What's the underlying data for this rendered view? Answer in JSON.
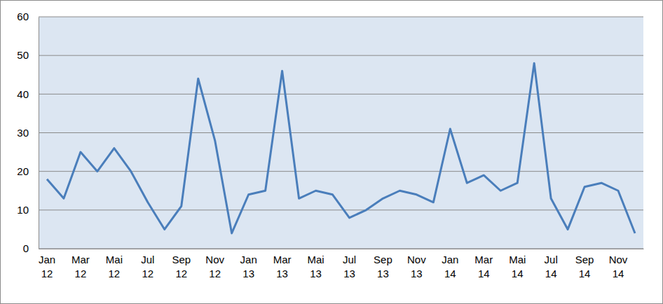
{
  "chart_data": {
    "type": "line",
    "categories": [
      "Jan 12",
      null,
      "Mar 12",
      null,
      "Mai 12",
      null,
      "Jul 12",
      null,
      "Sep 12",
      null,
      "Nov 12",
      null,
      "Jan 13",
      null,
      "Mar 13",
      null,
      "Mai 13",
      null,
      "Jul 13",
      null,
      "Sep 13",
      null,
      "Nov 13",
      null,
      "Jan 14",
      null,
      "Mar 14",
      null,
      "Mai 14",
      null,
      "Jul 14",
      null,
      "Sep 14",
      null,
      "Nov 14",
      null
    ],
    "values": [
      18,
      13,
      25,
      20,
      26,
      20,
      12,
      5,
      11,
      44,
      28,
      4,
      14,
      15,
      46,
      13,
      15,
      14,
      8,
      10,
      13,
      15,
      14,
      12,
      31,
      17,
      19,
      15,
      17,
      48,
      13,
      5,
      16,
      17,
      15,
      4
    ],
    "color": "#4a7ebb",
    "ylim": [
      0,
      60
    ],
    "yticks": [
      0,
      10,
      20,
      30,
      40,
      50,
      60
    ],
    "grid": true
  }
}
